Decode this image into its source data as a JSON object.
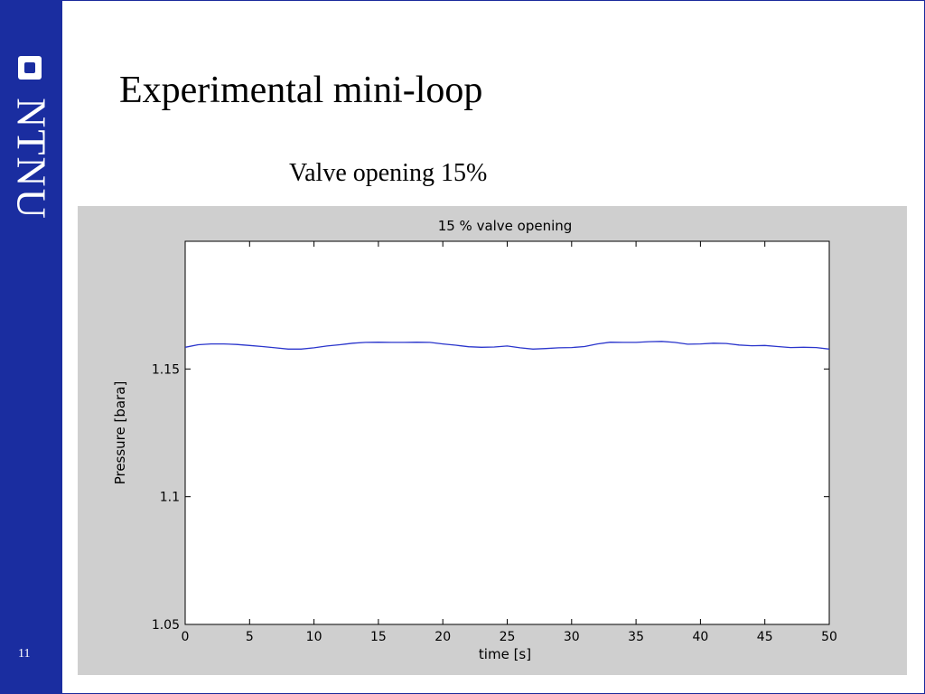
{
  "slide": {
    "title": "Experimental mini-loop",
    "subtitle": "Valve opening 15%",
    "page_number": "11",
    "logo_text": "NTNU"
  },
  "colors": {
    "sidebar": "#1a2da0",
    "figure_bg": "#cfcfcf",
    "line": "#2a35cc"
  },
  "chart_data": {
    "type": "line",
    "title": "15  % valve opening",
    "xlabel": "time [s]",
    "ylabel": "Pressure [bara]",
    "xlim": [
      0,
      50
    ],
    "ylim": [
      1.05,
      1.2
    ],
    "xticks": [
      0,
      5,
      10,
      15,
      20,
      25,
      30,
      35,
      40,
      45,
      50
    ],
    "xtick_labels": [
      "0",
      "5",
      "10",
      "15",
      "20",
      "25",
      "30",
      "35",
      "40",
      "45",
      "50"
    ],
    "yticks": [
      1.05,
      1.1,
      1.15
    ],
    "ytick_labels": [
      "1.05",
      "1.1",
      "1.15"
    ],
    "grid": false,
    "series": [
      {
        "x": [
          0,
          1,
          2,
          3,
          4,
          5,
          6,
          7,
          8,
          9,
          10,
          11,
          12,
          13,
          14,
          15,
          16,
          17,
          18,
          19,
          20,
          21,
          22,
          23,
          24,
          25,
          26,
          27,
          28,
          29,
          30,
          31,
          32,
          33,
          34,
          35,
          36,
          37,
          38,
          39,
          40,
          41,
          42,
          43,
          44,
          45,
          46,
          47,
          48,
          49,
          50
        ],
        "y": [
          1.1585,
          1.1595,
          1.1598,
          1.1598,
          1.1596,
          1.1592,
          1.1588,
          1.1583,
          1.1578,
          1.1578,
          1.1583,
          1.159,
          1.1595,
          1.1601,
          1.1604,
          1.1605,
          1.1604,
          1.1604,
          1.1605,
          1.1604,
          1.1598,
          1.1593,
          1.1587,
          1.1585,
          1.1586,
          1.159,
          1.1583,
          1.1578,
          1.158,
          1.1583,
          1.1584,
          1.1588,
          1.1598,
          1.1605,
          1.1604,
          1.1604,
          1.1607,
          1.1608,
          1.1604,
          1.1597,
          1.1598,
          1.1601,
          1.16,
          1.1594,
          1.1591,
          1.1592,
          1.1588,
          1.1584,
          1.1585,
          1.1584,
          1.1578
        ]
      }
    ]
  }
}
